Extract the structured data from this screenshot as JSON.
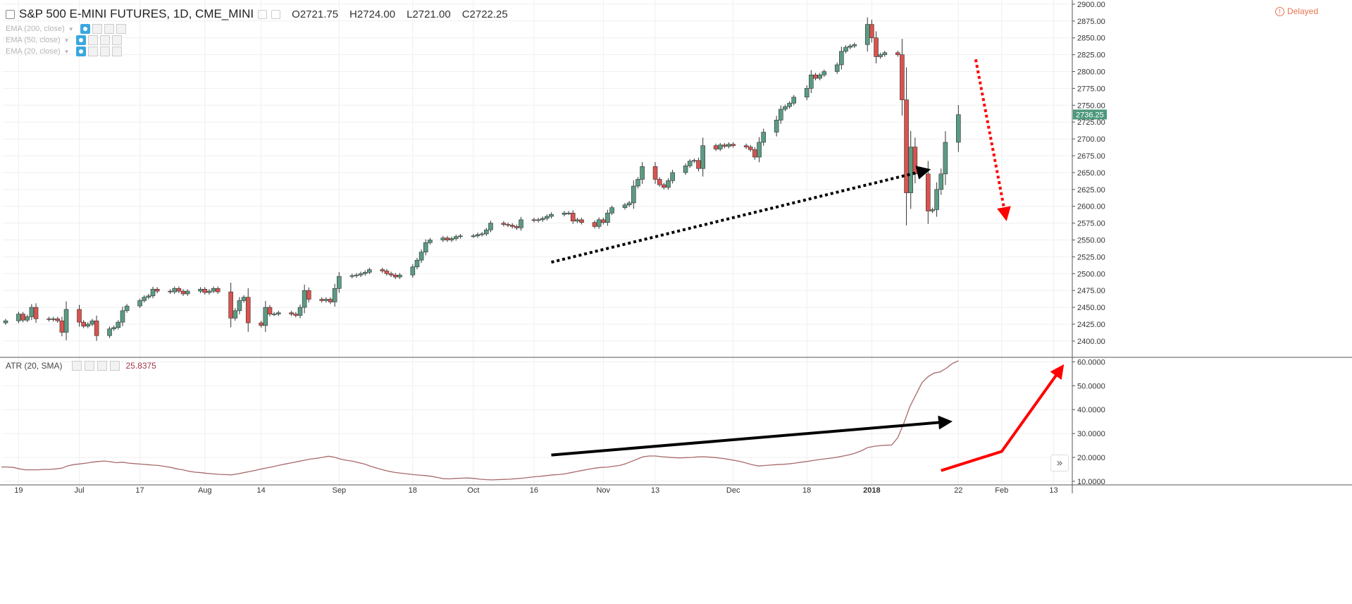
{
  "header": {
    "symbol_title": "S&P 500 E-MINI FUTURES, 1D, CME_MINI",
    "ohlc": {
      "open": "O2721.75",
      "high": "H2724.00",
      "low": "L2721.00",
      "close": "C2722.25"
    },
    "indicators": [
      {
        "label": "EMA (200, close)"
      },
      {
        "label": "EMA (50, close)"
      },
      {
        "label": "EMA (20, close)"
      }
    ],
    "delayed_label": "Delayed",
    "delayed_icon": "warning-circle-icon"
  },
  "atr_legend": {
    "label": "ATR (20, SMA)",
    "value": "25.8375"
  },
  "scroll_icon": "double-chevron-right-icon",
  "colors": {
    "up": "#5b9b83",
    "down": "#d9534f",
    "grid": "#efefef",
    "atr": "#a86a6a",
    "price_tag": "#4d9a7d",
    "arrow_black": "#000000",
    "arrow_red": "#ff0000"
  },
  "chart_data": [
    {
      "type": "candlestick",
      "title": "S&P 500 E-MINI FUTURES, 1D, CME_MINI",
      "y_axis_ticks": [
        "2400.00",
        "2425.00",
        "2450.00",
        "2475.00",
        "2500.00",
        "2525.00",
        "2550.00",
        "2575.00",
        "2600.00",
        "2625.00",
        "2650.00",
        "2675.00",
        "2700.00",
        "2725.00",
        "2750.00",
        "2775.00",
        "2800.00",
        "2825.00",
        "2850.00",
        "2875.00",
        "2900.00"
      ],
      "ylim": [
        2380,
        2902
      ],
      "last_price_tag": "2736.25",
      "x_axis_ticks": [
        "19",
        "Jul",
        "17",
        "Aug",
        "14",
        "Sep",
        "18",
        "Oct",
        "16",
        "Nov",
        "13",
        "Dec",
        "18",
        "2018",
        "22",
        "Feb",
        "13"
      ],
      "x_tick_dates": [
        "2017-06-19",
        "2017-07-03",
        "2017-07-17",
        "2017-08-01",
        "2017-08-14",
        "2017-09-01",
        "2017-09-18",
        "2017-10-02",
        "2017-10-16",
        "2017-11-01",
        "2017-11-13",
        "2017-12-01",
        "2017-12-18",
        "2018-01-02",
        "2018-01-22",
        "2018-02-01",
        "2018-02-13"
      ],
      "close": [
        2430,
        2440,
        2431,
        2436,
        2450,
        2433,
        2432,
        2433,
        2430,
        2413,
        2447,
        2428,
        2422,
        2425,
        2430,
        2408,
        2418,
        2420,
        2428,
        2445,
        2452,
        2460,
        2465,
        2467,
        2477,
        2474,
        2473,
        2478,
        2474,
        2470,
        2474,
        2477,
        2472,
        2474,
        2478,
        2473,
        2434,
        2445,
        2460,
        2465,
        2427,
        2423,
        2450,
        2440,
        2440,
        2442,
        2440,
        2438,
        2450,
        2475,
        2462,
        2460,
        2462,
        2458,
        2478,
        2496,
        2497,
        2498,
        2500,
        2502,
        2506,
        2504,
        2500,
        2498,
        2495,
        2498,
        2510,
        2520,
        2532,
        2546,
        2550,
        2553,
        2550,
        2552,
        2555,
        2556,
        2556,
        2558,
        2559,
        2565,
        2575,
        2573,
        2572,
        2570,
        2568,
        2580,
        2579,
        2580,
        2582,
        2585,
        2588,
        2590,
        2590,
        2578,
        2580,
        2576,
        2570,
        2580,
        2576,
        2590,
        2598,
        2602,
        2605,
        2630,
        2640,
        2659,
        2640,
        2632,
        2628,
        2638,
        2650,
        2660,
        2667,
        2668,
        2656,
        2690,
        2685,
        2691,
        2689,
        2692,
        2690,
        2688,
        2684,
        2673,
        2695,
        2710,
        2728,
        2744,
        2748,
        2753,
        2762,
        2775,
        2795,
        2790,
        2795,
        2800,
        2810,
        2830,
        2836,
        2838,
        2840,
        2870,
        2850,
        2822,
        2825,
        2828,
        2825,
        2758,
        2620,
        2688,
        2648,
        2593,
        2595,
        2625,
        2648,
        2695,
        2736
      ],
      "atr": {
        "label": "ATR (20, SMA)",
        "y_axis_ticks": [
          "10.0000",
          "20.0000",
          "30.0000",
          "40.0000",
          "50.0000",
          "60.0000"
        ],
        "ylim": [
          8.5,
          61
        ],
        "values": [
          16,
          16,
          15.8,
          15.2,
          14.8,
          14.8,
          14.8,
          15,
          15,
          15.2,
          15.5,
          16.5,
          17,
          17.3,
          17.6,
          18,
          18.3,
          18.5,
          18.2,
          17.8,
          18,
          17.6,
          17.4,
          17.2,
          17,
          16.8,
          16.6,
          16.2,
          15.8,
          15.2,
          14.8,
          14.2,
          13.8,
          13.6,
          13.3,
          13.1,
          12.9,
          12.8,
          12.7,
          13.1,
          13.6,
          14.1,
          14.6,
          15.2,
          15.7,
          16.2,
          16.8,
          17.3,
          17.8,
          18.3,
          18.8,
          19.3,
          19.6,
          20,
          20.5,
          20.1,
          19.3,
          18.8,
          18.4,
          17.8,
          17.2,
          16.3,
          15.5,
          14.8,
          14.2,
          13.7,
          13.4,
          13.1,
          12.8,
          12.6,
          12.4,
          12.1,
          11.6,
          11.1,
          11,
          11.2,
          11.3,
          11.4,
          11.2,
          10.9,
          10.7,
          10.6,
          10.7,
          10.8,
          10.9,
          11.1,
          11.3,
          11.6,
          11.9,
          12.1,
          12.4,
          12.7,
          12.8,
          13.1,
          13.6,
          14.1,
          14.6,
          15.1,
          15.5,
          15.8,
          15.9,
          16.3,
          16.6,
          17.3,
          18.3,
          19.3,
          20.3,
          20.6,
          20.6,
          20.3,
          20.1,
          19.9,
          19.8,
          19.9,
          20,
          20.2,
          20.3,
          20.1,
          19.9,
          19.6,
          19.2,
          18.8,
          18.3,
          17.6,
          16.9,
          16.4,
          16.6,
          16.8,
          17,
          17.1,
          17.3,
          17.6,
          18,
          18.3,
          18.7,
          19.1,
          19.4,
          19.7,
          20.1,
          20.6,
          21.1,
          21.8,
          22.8,
          24.1,
          24.6,
          24.9,
          25.1,
          25.2,
          28.3,
          34.3,
          41.3,
          46.3,
          51.3,
          53.8,
          55.3,
          55.8,
          57.3,
          59.3,
          60.4
        ]
      },
      "annotations": [
        {
          "type": "dotted-arrow",
          "color": "black",
          "from": [
            "2017-10-20",
            2517
          ],
          "to": [
            "2018-01-15",
            2654
          ]
        },
        {
          "type": "dotted-arrow",
          "color": "red",
          "from": [
            "2018-01-26",
            2818
          ],
          "to": [
            "2018-02-02",
            2582
          ]
        },
        {
          "type": "arrow",
          "color": "black",
          "from": [
            "2017-10-20",
            21
          ],
          "to": [
            "2018-01-20",
            35
          ]
        },
        {
          "type": "arrow",
          "color": "red",
          "from": [
            "2018-01-18",
            14.5
          ],
          "to": [
            "2018-02-15",
            58
          ]
        }
      ]
    }
  ]
}
